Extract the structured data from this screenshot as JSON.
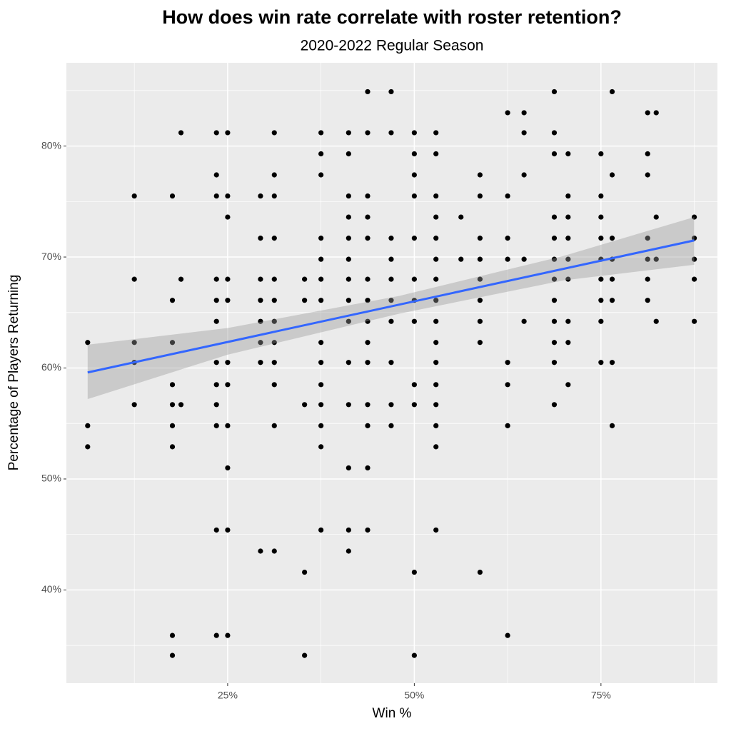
{
  "chart_data": {
    "type": "scatter",
    "title": "How does win rate correlate with roster retention?",
    "subtitle": "2020-2022 Regular Season",
    "x_label": "Win %",
    "y_label": "Percentage of Players Returning",
    "xlim": [
      3.4,
      90.6
    ],
    "ylim": [
      31.6,
      87.5
    ],
    "xticks": [
      {
        "value": 25,
        "label": "25%"
      },
      {
        "value": 50,
        "label": "50%"
      },
      {
        "value": 75,
        "label": "75%"
      }
    ],
    "yticks": [
      {
        "value": 40,
        "label": "40%"
      },
      {
        "value": 50,
        "label": "50%"
      },
      {
        "value": 60,
        "label": "60%"
      },
      {
        "value": 70,
        "label": "70%"
      },
      {
        "value": 80,
        "label": "80%"
      }
    ],
    "xminor": [
      12.5,
      37.5,
      62.5,
      87.5
    ],
    "yminor": [
      35,
      45,
      55,
      65,
      75,
      85
    ],
    "grid": true,
    "color": "#000000",
    "x": [
      6.25,
      6.25,
      6.25,
      12.5,
      12.5,
      12.5,
      12.5,
      12.5,
      17.6,
      17.6,
      17.6,
      17.6,
      17.6,
      17.6,
      17.6,
      17.6,
      17.6,
      18.75,
      18.75,
      18.75,
      23.5,
      23.5,
      23.5,
      23.5,
      23.5,
      23.5,
      23.5,
      23.5,
      23.5,
      23.5,
      23.5,
      23.5,
      25,
      25,
      25,
      25,
      25,
      25,
      25,
      25,
      25,
      25,
      25,
      29.4,
      29.4,
      29.4,
      29.4,
      29.4,
      29.4,
      29.4,
      29.4,
      31.25,
      31.25,
      31.25,
      31.25,
      31.25,
      31.25,
      31.25,
      31.25,
      31.25,
      31.25,
      31.25,
      31.25,
      35.3,
      35.3,
      35.3,
      35.3,
      35.3,
      37.5,
      37.5,
      37.5,
      37.5,
      37.5,
      37.5,
      37.5,
      37.5,
      37.5,
      37.5,
      37.5,
      37.5,
      37.5,
      37.5,
      41.2,
      41.2,
      41.2,
      41.2,
      41.2,
      41.2,
      41.2,
      41.2,
      41.2,
      41.2,
      41.2,
      41.2,
      41.2,
      41.2,
      43.75,
      43.75,
      43.75,
      43.75,
      43.75,
      43.75,
      43.75,
      43.75,
      43.75,
      43.75,
      43.75,
      43.75,
      43.75,
      43.75,
      46.9,
      46.9,
      46.9,
      46.9,
      46.9,
      46.9,
      46.9,
      46.9,
      46.9,
      46.9,
      50,
      50,
      50,
      50,
      50,
      50,
      50,
      50,
      50,
      50,
      50,
      50,
      52.9,
      52.9,
      52.9,
      52.9,
      52.9,
      52.9,
      52.9,
      52.9,
      52.9,
      52.9,
      52.9,
      52.9,
      52.9,
      52.9,
      52.9,
      52.9,
      56.25,
      56.25,
      58.8,
      58.8,
      58.8,
      58.8,
      58.8,
      58.8,
      58.8,
      58.8,
      58.8,
      62.5,
      62.5,
      62.5,
      62.5,
      62.5,
      62.5,
      62.5,
      62.5,
      64.7,
      64.7,
      64.7,
      64.7,
      64.7,
      68.75,
      68.75,
      68.75,
      68.75,
      68.75,
      68.75,
      68.75,
      68.75,
      68.75,
      68.75,
      68.75,
      68.75,
      70.6,
      70.6,
      70.6,
      70.6,
      70.6,
      70.6,
      70.6,
      70.6,
      70.6,
      75,
      75,
      75,
      75,
      75,
      75,
      75,
      75,
      75,
      76.5,
      76.5,
      76.5,
      76.5,
      76.5,
      76.5,
      76.5,
      76.5,
      81.25,
      81.25,
      81.25,
      81.25,
      81.25,
      81.25,
      81.25,
      82.4,
      82.4,
      82.4,
      82.4,
      87.5,
      87.5,
      87.5,
      87.5,
      87.5
    ],
    "y": [
      62.3,
      54.8,
      52.9,
      75.5,
      68.0,
      62.3,
      60.5,
      56.7,
      75.5,
      66.1,
      62.3,
      58.5,
      56.7,
      54.8,
      52.9,
      35.9,
      34.1,
      81.2,
      68.0,
      56.7,
      81.2,
      77.4,
      75.5,
      68.0,
      66.1,
      64.2,
      60.5,
      58.5,
      56.7,
      54.8,
      45.4,
      35.9,
      81.2,
      75.5,
      73.6,
      68.0,
      66.1,
      60.5,
      58.5,
      54.8,
      51.0,
      45.4,
      35.9,
      75.5,
      71.7,
      68.0,
      66.1,
      64.2,
      62.3,
      60.5,
      43.5,
      81.2,
      77.4,
      75.5,
      71.7,
      68.0,
      66.1,
      64.2,
      62.3,
      60.5,
      58.5,
      54.8,
      43.5,
      68.0,
      66.1,
      56.7,
      41.6,
      34.1,
      81.2,
      79.3,
      77.4,
      71.7,
      69.8,
      68.0,
      66.1,
      62.3,
      60.5,
      58.5,
      56.7,
      54.8,
      52.9,
      45.4,
      81.2,
      79.3,
      75.5,
      73.6,
      71.7,
      69.8,
      68.0,
      66.1,
      64.2,
      60.5,
      56.7,
      51.0,
      45.4,
      43.5,
      84.9,
      81.2,
      75.5,
      73.6,
      71.7,
      68.0,
      66.1,
      64.2,
      62.3,
      60.5,
      56.7,
      54.8,
      51.0,
      45.4,
      84.9,
      81.2,
      71.7,
      69.8,
      68.0,
      66.1,
      64.2,
      60.5,
      56.7,
      54.8,
      81.2,
      79.3,
      77.4,
      75.5,
      71.7,
      68.0,
      66.1,
      64.2,
      58.5,
      56.7,
      41.6,
      34.1,
      81.2,
      79.3,
      75.5,
      73.6,
      71.7,
      69.8,
      68.0,
      66.1,
      64.2,
      62.3,
      60.5,
      58.5,
      56.7,
      54.8,
      52.9,
      45.4,
      73.6,
      69.8,
      77.4,
      75.5,
      71.7,
      69.8,
      68.0,
      66.1,
      64.2,
      62.3,
      41.6,
      83.0,
      75.5,
      71.7,
      69.8,
      60.5,
      58.5,
      54.8,
      35.9,
      83.0,
      81.2,
      77.4,
      69.8,
      64.2,
      84.9,
      81.2,
      79.3,
      73.6,
      71.7,
      69.8,
      68.0,
      66.1,
      64.2,
      62.3,
      60.5,
      56.7,
      79.3,
      75.5,
      73.6,
      71.7,
      69.8,
      68.0,
      64.2,
      62.3,
      58.5,
      79.3,
      75.5,
      73.6,
      71.7,
      69.8,
      68.0,
      66.1,
      64.2,
      60.5,
      84.9,
      77.4,
      71.7,
      69.8,
      68.0,
      66.1,
      60.5,
      54.8,
      83.0,
      79.3,
      77.4,
      71.7,
      69.8,
      68.0,
      66.1,
      83.0,
      73.6,
      69.8,
      64.2,
      73.6,
      71.7,
      69.8,
      68.0,
      64.2
    ],
    "fit": {
      "color": "#3366ff",
      "x": [
        6.25,
        87.5
      ],
      "y": [
        59.6,
        71.5
      ]
    },
    "band": {
      "color": "#999999",
      "x": [
        6.25,
        25,
        48,
        70,
        87.5
      ],
      "lower": [
        57.2,
        61.2,
        64.9,
        67.9,
        69.3
      ],
      "upper": [
        62.1,
        63.6,
        66.5,
        70.1,
        73.6
      ]
    }
  }
}
